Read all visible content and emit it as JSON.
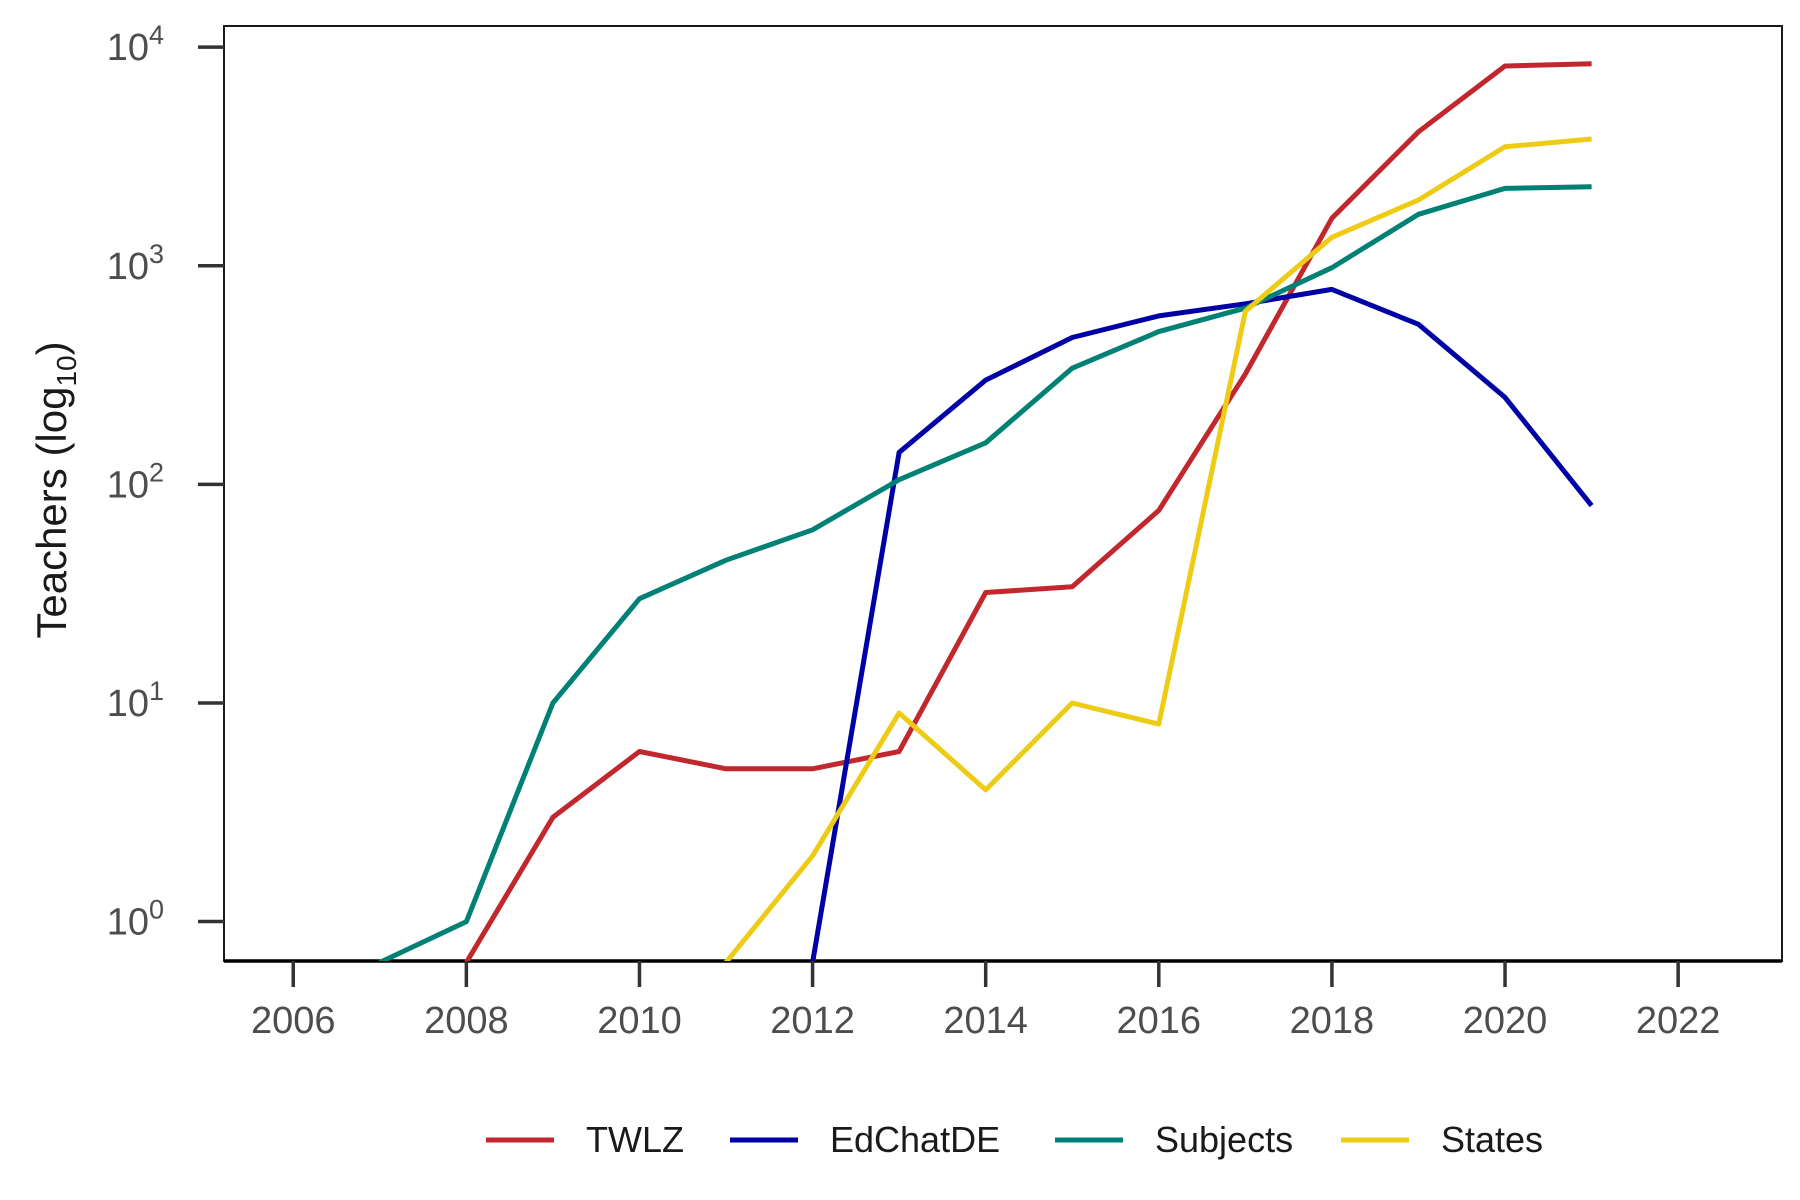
{
  "chart_data": {
    "type": "line",
    "title": "",
    "xlabel": "",
    "ylabel": "Teachers (log",
    "ylabel_subscript": "10",
    "ylabel_close": ")",
    "y_scale": "log10",
    "xlim": [
      2005.2,
      2023.2
    ],
    "ylim": [
      0.66,
      12500
    ],
    "x_ticks": [
      2006,
      2008,
      2010,
      2012,
      2014,
      2016,
      2018,
      2020,
      2022
    ],
    "x_tick_labels": [
      "2006",
      "2008",
      "2010",
      "2012",
      "2014",
      "2016",
      "2018",
      "2020",
      "2022"
    ],
    "y_ticks": [
      1,
      10,
      100,
      1000,
      10000
    ],
    "y_tick_labels": [
      {
        "base": "10",
        "exp": "0"
      },
      {
        "base": "10",
        "exp": "1"
      },
      {
        "base": "10",
        "exp": "2"
      },
      {
        "base": "10",
        "exp": "3"
      },
      {
        "base": "10",
        "exp": "4"
      }
    ],
    "grid": false,
    "legend_position": "bottom",
    "series": [
      {
        "name": "TWLZ",
        "color": "#c1272d",
        "x": [
          2008,
          2009,
          2010,
          2011,
          2012,
          2013,
          2014,
          2015,
          2016,
          2017,
          2018,
          2019,
          2020,
          2021
        ],
        "values": [
          0.65,
          3,
          6,
          5,
          5,
          6,
          32,
          34,
          76,
          320,
          1650,
          4100,
          8200,
          8400
        ]
      },
      {
        "name": "EdChatDE",
        "color": "#0000a7",
        "x": [
          2012,
          2013,
          2014,
          2015,
          2016,
          2017,
          2018,
          2019,
          2020,
          2021
        ],
        "values": [
          0.65,
          140,
          300,
          470,
          590,
          670,
          780,
          540,
          250,
          80
        ]
      },
      {
        "name": "Subjects",
        "color": "#008176",
        "x": [
          2007,
          2008,
          2009,
          2010,
          2011,
          2012,
          2013,
          2014,
          2015,
          2016,
          2017,
          2018,
          2019,
          2020,
          2021
        ],
        "values": [
          0.65,
          1,
          10,
          30,
          45,
          62,
          105,
          155,
          340,
          500,
          640,
          980,
          1720,
          2260,
          2300
        ]
      },
      {
        "name": "States",
        "color": "#eecc16",
        "x": [
          2011,
          2012,
          2013,
          2014,
          2015,
          2016,
          2017,
          2018,
          2019,
          2020,
          2021
        ],
        "values": [
          0.65,
          2,
          9,
          4,
          10,
          8,
          620,
          1350,
          2000,
          3500,
          3800
        ]
      }
    ]
  }
}
